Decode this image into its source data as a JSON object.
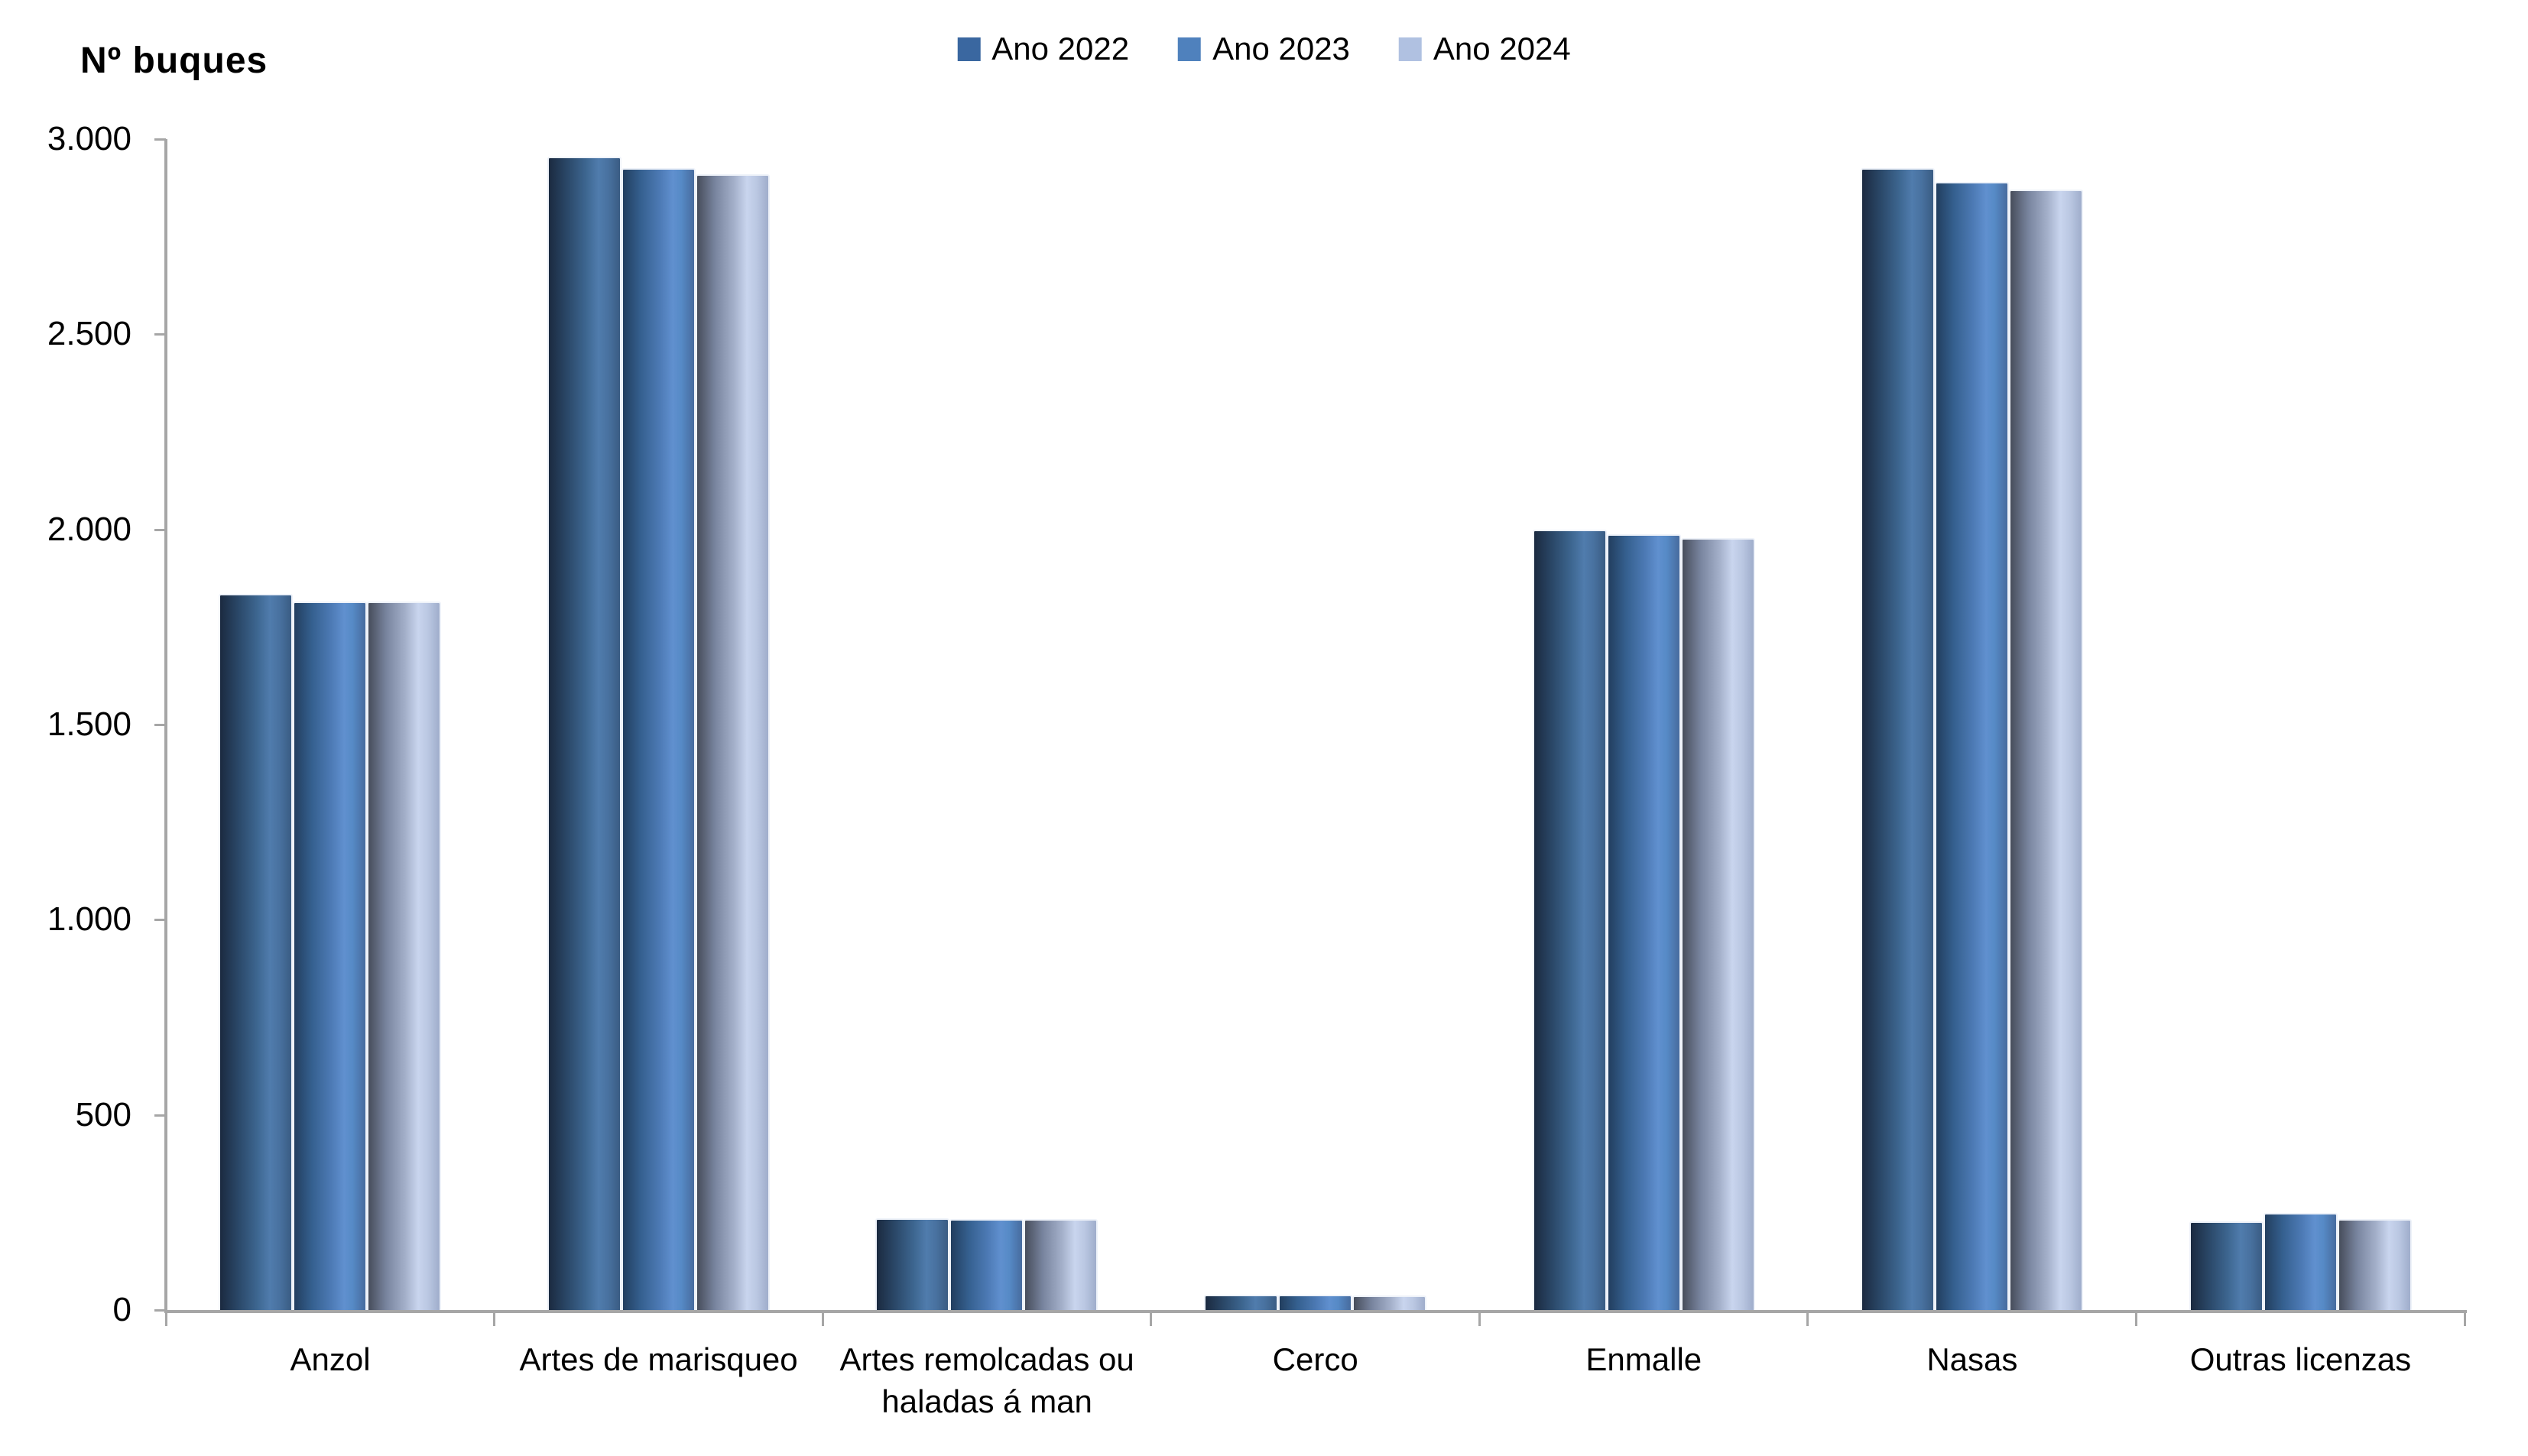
{
  "chart": {
    "title": "Nº buques"
  },
  "chart_data": {
    "type": "bar",
    "title": "Nº buques",
    "ylabel": "Nº buques",
    "xlabel": "",
    "grid": false,
    "legend_position": "top-center",
    "axis_color": "#a6a6a6",
    "background": "#ffffff",
    "ylim": [
      0,
      3000
    ],
    "ytick_step": 500,
    "ytick_labels": [
      "0",
      "500",
      "1.000",
      "1.500",
      "2.000",
      "2.500",
      "3.000"
    ],
    "categories": [
      "Anzol",
      "Artes de marisqueo",
      "Artes remolcadas ou haladas á man",
      "Cerco",
      "Enmalle",
      "Nasas",
      "Outras licenzas"
    ],
    "series": [
      {
        "name": "Ano 2022",
        "color": "#3a67a0",
        "values": [
          1835,
          2955,
          235,
          40,
          2000,
          2925,
          228
        ]
      },
      {
        "name": "Ano 2023",
        "color": "#4f81bd",
        "values": [
          1815,
          2925,
          233,
          40,
          1987,
          2890,
          248
        ]
      },
      {
        "name": "Ano 2024",
        "color": "#b0c1e1",
        "values": [
          1815,
          2910,
          233,
          38,
          1978,
          2870,
          234
        ]
      }
    ]
  }
}
